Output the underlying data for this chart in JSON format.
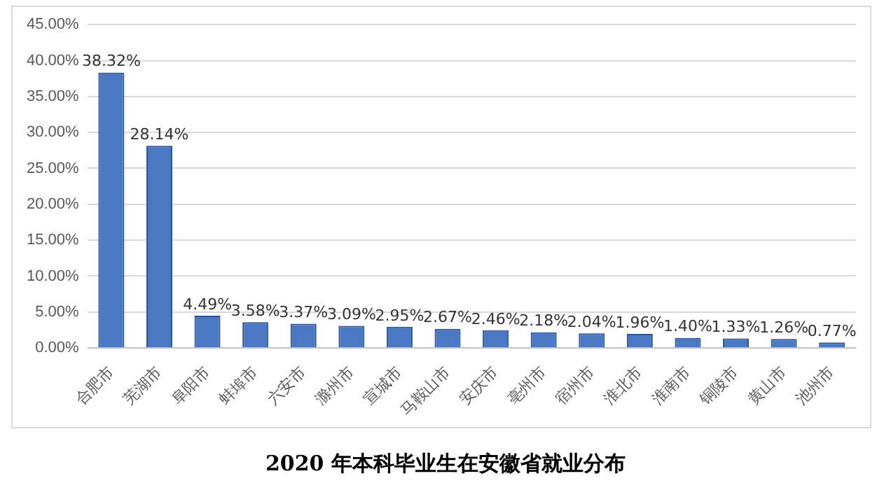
{
  "chart_data": {
    "type": "bar",
    "title": "2020 年本科毕业生在安徽省就业分布",
    "categories": [
      "合肥市",
      "芜湖市",
      "阜阳市",
      "蚌埠市",
      "六安市",
      "滁州市",
      "宣城市",
      "马鞍山市",
      "安庆市",
      "亳州市",
      "宿州市",
      "淮北市",
      "淮南市",
      "铜陵市",
      "黄山市",
      "池州市"
    ],
    "values": [
      38.32,
      28.14,
      4.49,
      3.58,
      3.37,
      3.09,
      2.95,
      2.67,
      2.46,
      2.18,
      2.04,
      1.96,
      1.4,
      1.33,
      1.26,
      0.77
    ],
    "value_labels": [
      "38.32%",
      "28.14%",
      "4.49%",
      "3.58%",
      "3.37%",
      "3.09%",
      "2.95%",
      "2.67%",
      "2.46%",
      "2.18%",
      "2.04%",
      "1.96%",
      "1.40%",
      "1.33%",
      "1.26%",
      "0.77%"
    ],
    "color": "#4a78c2",
    "ylim": [
      0,
      45
    ],
    "yticks": [
      {
        "value": 0,
        "label": "0.00%"
      },
      {
        "value": 5,
        "label": "5.00%"
      },
      {
        "value": 10,
        "label": "10.00%"
      },
      {
        "value": 15,
        "label": "15.00%"
      },
      {
        "value": 20,
        "label": "20.00%"
      },
      {
        "value": 25,
        "label": "25.00%"
      },
      {
        "value": 30,
        "label": "30.00%"
      },
      {
        "value": 35,
        "label": "35.00%"
      },
      {
        "value": 40,
        "label": "40.00%"
      },
      {
        "value": 45,
        "label": "45.00%"
      }
    ],
    "grid": "y",
    "legend": false
  }
}
